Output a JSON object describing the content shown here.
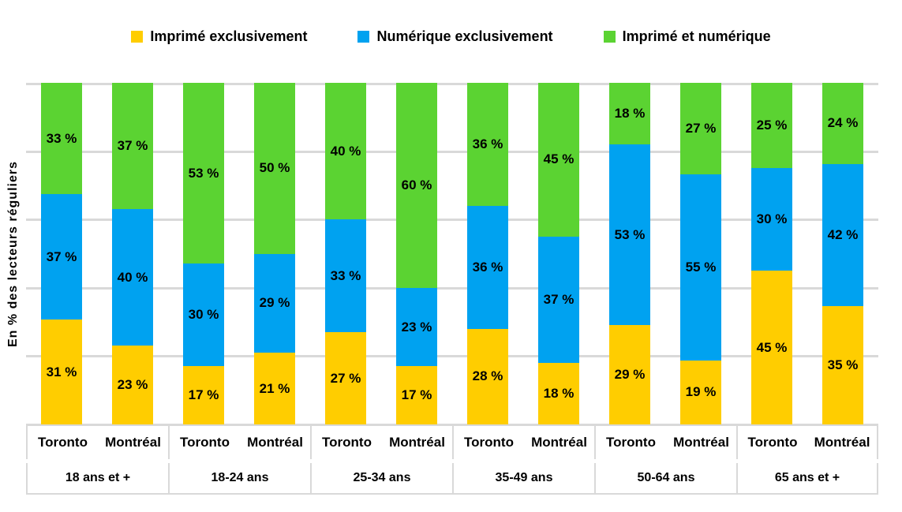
{
  "chart_data": {
    "type": "bar",
    "variant": "stacked-100-percent",
    "title": "",
    "ylabel": "En % des lecteurs réguliers",
    "xlabel": "",
    "value_suffix": " %",
    "grid": true,
    "gridline_percents": [
      0,
      20,
      40,
      60,
      80,
      100
    ],
    "gridline_color": "#d9d9d9",
    "legend_position": "top",
    "legend": [
      {
        "name": "Imprimé exclusivement",
        "color": "#ffcd00"
      },
      {
        "name": "Numérique exclusivement",
        "color": "#00a2f0"
      },
      {
        "name": "Imprimé et numérique",
        "color": "#5bd332"
      }
    ],
    "city_labels": [
      "Toronto",
      "Montréal"
    ],
    "group_labels": [
      "18 ans et +",
      "18-24 ans",
      "25-34 ans",
      "35-49 ans",
      "50-64 ans",
      "65 ans et +"
    ],
    "bars": [
      {
        "group": "18 ans et +",
        "city": "Toronto",
        "values": [
          31,
          37,
          33
        ]
      },
      {
        "group": "18 ans et +",
        "city": "Montréal",
        "values": [
          23,
          40,
          37
        ]
      },
      {
        "group": "18-24 ans",
        "city": "Toronto",
        "values": [
          17,
          30,
          53
        ]
      },
      {
        "group": "18-24 ans",
        "city": "Montréal",
        "values": [
          21,
          29,
          50
        ]
      },
      {
        "group": "25-34 ans",
        "city": "Toronto",
        "values": [
          27,
          33,
          40
        ]
      },
      {
        "group": "25-34 ans",
        "city": "Montréal",
        "values": [
          17,
          23,
          60
        ]
      },
      {
        "group": "35-49 ans",
        "city": "Toronto",
        "values": [
          28,
          36,
          36
        ]
      },
      {
        "group": "35-49 ans",
        "city": "Montréal",
        "values": [
          18,
          37,
          45
        ]
      },
      {
        "group": "50-64 ans",
        "city": "Toronto",
        "values": [
          29,
          53,
          18
        ]
      },
      {
        "group": "50-64 ans",
        "city": "Montréal",
        "values": [
          19,
          55,
          27
        ]
      },
      {
        "group": "65 ans et +",
        "city": "Toronto",
        "values": [
          45,
          30,
          25
        ]
      },
      {
        "group": "65 ans et +",
        "city": "Montréal",
        "values": [
          35,
          42,
          24
        ]
      }
    ]
  }
}
